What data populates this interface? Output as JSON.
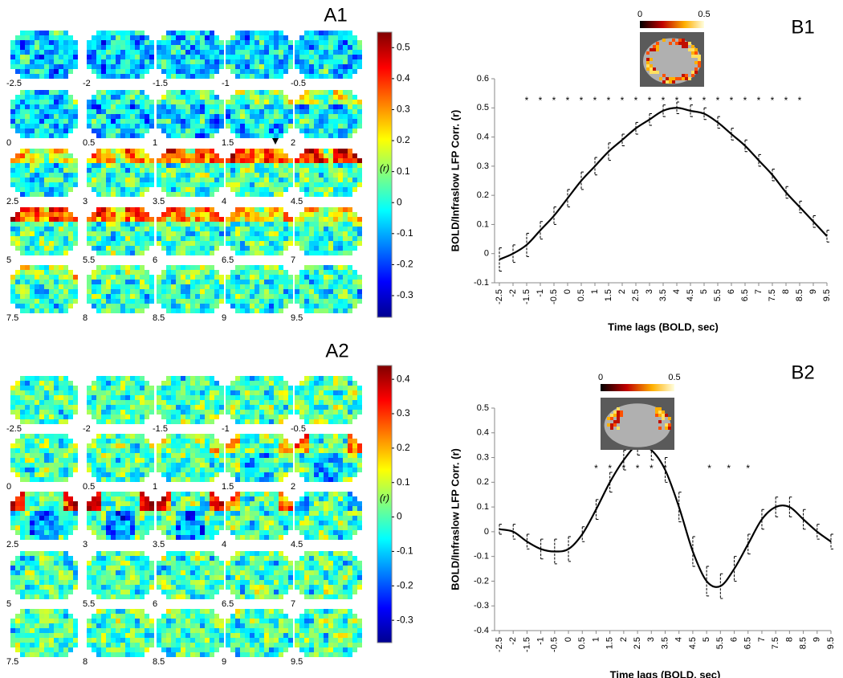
{
  "chart_data": [
    {
      "type": "map-grid",
      "title": "A1",
      "lags": [
        -2.5,
        -2,
        -1.5,
        -1,
        -0.5,
        0,
        0.5,
        1,
        1.5,
        2,
        2.5,
        3,
        3.5,
        4,
        4.5,
        5,
        5.5,
        6,
        6.5,
        7,
        7.5,
        8,
        8.5,
        9,
        9.5
      ],
      "colorbar": {
        "label": "(r)",
        "lim": [
          -0.37,
          0.55
        ],
        "ticks": [
          0.5,
          0.4,
          0.3,
          0.2,
          0.1,
          0,
          -0.1,
          -0.2,
          -0.3
        ]
      }
    },
    {
      "type": "line",
      "title": "B1",
      "color": "#000000",
      "x": [
        -2.5,
        -2,
        -1.5,
        -1,
        -0.5,
        0,
        0.5,
        1,
        1.5,
        2,
        2.5,
        3,
        3.5,
        4,
        4.5,
        5,
        5.5,
        6,
        6.5,
        7,
        7.5,
        8,
        8.5,
        9,
        9.5
      ],
      "values": [
        -0.02,
        0.0,
        0.03,
        0.08,
        0.13,
        0.19,
        0.25,
        0.3,
        0.35,
        0.39,
        0.43,
        0.46,
        0.49,
        0.5,
        0.49,
        0.48,
        0.45,
        0.41,
        0.37,
        0.32,
        0.27,
        0.21,
        0.16,
        0.11,
        0.06
      ],
      "errors": [
        0.04,
        0.03,
        0.04,
        0.03,
        0.03,
        0.03,
        0.03,
        0.03,
        0.03,
        0.02,
        0.02,
        0.02,
        0.02,
        0.02,
        0.02,
        0.02,
        0.02,
        0.02,
        0.02,
        0.02,
        0.02,
        0.02,
        0.02,
        0.02,
        0.02
      ],
      "xlim": [
        -2.5,
        9.5
      ],
      "ylim": [
        -0.1,
        0.6
      ],
      "xticks": [
        -2.5,
        -2,
        -1.5,
        -1,
        -0.5,
        0,
        0.5,
        1,
        1.5,
        2,
        2.5,
        3,
        3.5,
        4,
        4.5,
        5,
        5.5,
        6,
        6.5,
        7,
        7.5,
        8,
        8.5,
        9,
        9.5
      ],
      "yticks": [
        -0.1,
        0,
        0.1,
        0.2,
        0.3,
        0.4,
        0.5,
        0.6
      ],
      "xlabel": "Time lags (BOLD, sec)",
      "ylabel": "BOLD/Infraslow LFP Corr. (r)",
      "significance": {
        "marker": "*",
        "x": [
          -1.5,
          -1,
          -0.5,
          0,
          0.5,
          1,
          1.5,
          2,
          2.5,
          3,
          3.5,
          4,
          4.5,
          5,
          5.5,
          6,
          6.5,
          7,
          7.5,
          8,
          8.5
        ]
      },
      "inset": {
        "colorbar_ticks": [
          0,
          0.5
        ]
      }
    },
    {
      "type": "map-grid",
      "title": "A2",
      "lags": [
        -2.5,
        -2,
        -1.5,
        -1,
        -0.5,
        0,
        0.5,
        1,
        1.5,
        2,
        2.5,
        3,
        3.5,
        4,
        4.5,
        5,
        5.5,
        6,
        6.5,
        7,
        7.5,
        8,
        8.5,
        9,
        9.5
      ],
      "colorbar": {
        "label": "(r)",
        "lim": [
          -0.365,
          0.44
        ],
        "ticks": [
          0.4,
          0.3,
          0.2,
          0.1,
          0,
          -0.1,
          -0.2,
          -0.3
        ]
      }
    },
    {
      "type": "line",
      "title": "B2",
      "color": "#000000",
      "x": [
        -2.5,
        -2,
        -1.5,
        -1,
        -0.5,
        0,
        0.5,
        1,
        1.5,
        2,
        2.5,
        3,
        3.5,
        4,
        4.5,
        5,
        5.5,
        6,
        6.5,
        7,
        7.5,
        8,
        8.5,
        9,
        9.5
      ],
      "values": [
        0.01,
        0.0,
        -0.04,
        -0.07,
        -0.08,
        -0.07,
        -0.01,
        0.09,
        0.2,
        0.29,
        0.35,
        0.33,
        0.25,
        0.1,
        -0.08,
        -0.2,
        -0.22,
        -0.15,
        -0.05,
        0.05,
        0.1,
        0.1,
        0.05,
        0.0,
        -0.04
      ],
      "errors": [
        0.02,
        0.03,
        0.03,
        0.04,
        0.05,
        0.05,
        0.03,
        0.04,
        0.04,
        0.04,
        0.04,
        0.04,
        0.05,
        0.06,
        0.06,
        0.06,
        0.05,
        0.05,
        0.04,
        0.04,
        0.04,
        0.04,
        0.04,
        0.03,
        0.03
      ],
      "xlim": [
        -2.5,
        9.5
      ],
      "ylim": [
        -0.4,
        0.5
      ],
      "xticks": [
        -2.5,
        -2,
        -1.5,
        -1,
        -0.5,
        0,
        0.5,
        1,
        1.5,
        2,
        2.5,
        3,
        3.5,
        4,
        4.5,
        5,
        5.5,
        6,
        6.5,
        7,
        7.5,
        8,
        8.5,
        9,
        9.5
      ],
      "yticks": [
        -0.4,
        -0.3,
        -0.2,
        -0.1,
        0,
        0.1,
        0.2,
        0.3,
        0.4,
        0.5
      ],
      "xlabel": "Time lags (BOLD, sec)",
      "ylabel": "BOLD/Infraslow LFP Corr. (r)",
      "significance": {
        "marker": "*",
        "x": [
          1,
          1.5,
          2,
          2.5,
          3,
          3.5,
          5.1,
          5.8,
          6.5
        ]
      },
      "inset": {
        "colorbar_ticks": [
          0,
          0.5
        ]
      }
    }
  ]
}
